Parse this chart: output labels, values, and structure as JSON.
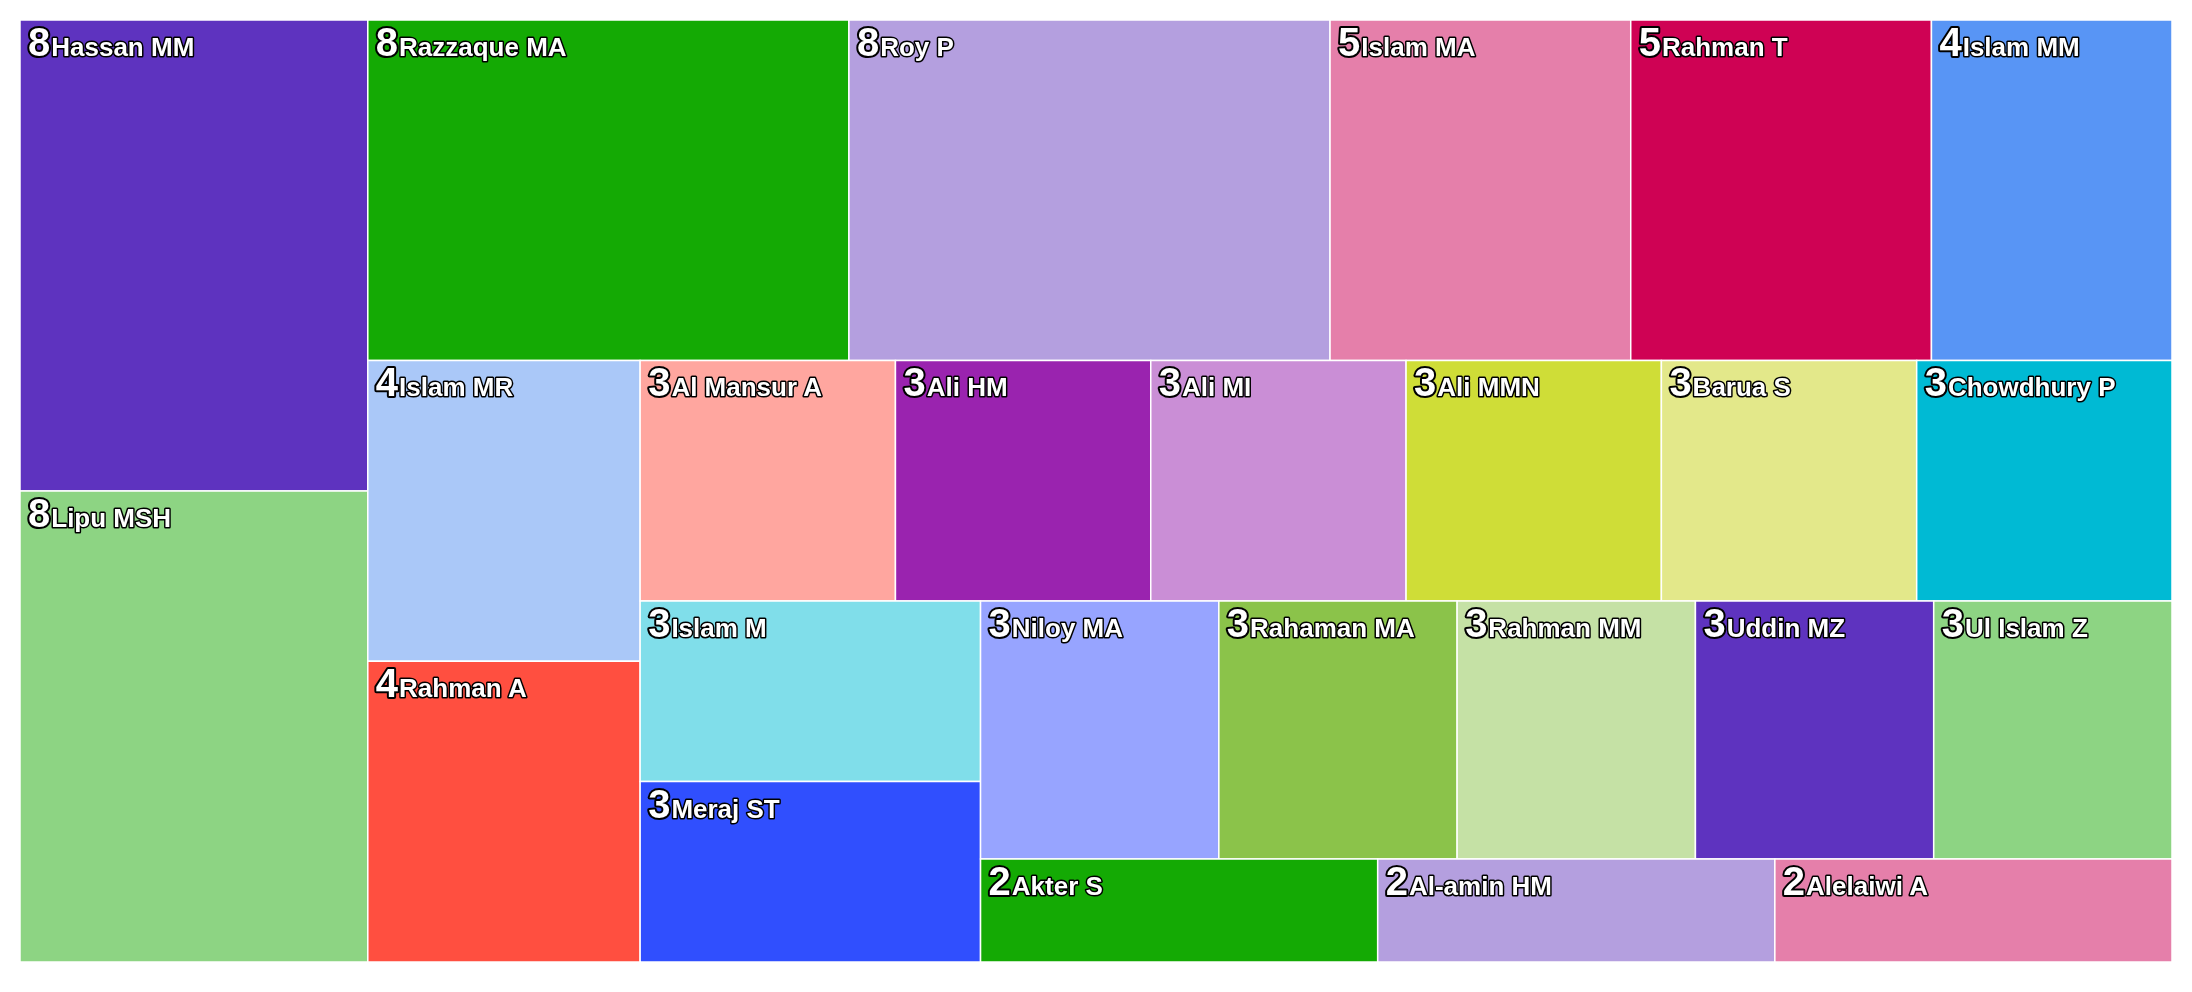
{
  "chart_data": {
    "type": "other",
    "data_labels": true,
    "categories": [
      "Hassan MM",
      "Lipu MSH",
      "Razzaque MA",
      "Roy P",
      "Islam MA",
      "Rahman T",
      "Islam MM",
      "Islam MR",
      "Rahman A",
      "Al Mansur A",
      "Ali HM",
      "Ali MI",
      "Ali MMN",
      "Barua S",
      "Chowdhury P",
      "Islam M",
      "Meraj ST",
      "Niloy MA",
      "Rahaman MA",
      "Rahman MM",
      "Uddin MZ",
      "Ul Islam Z",
      "Akter S",
      "Al-amin HM",
      "Alelaiwi A"
    ],
    "values": [
      8,
      8,
      8,
      8,
      5,
      5,
      4,
      4,
      4,
      3,
      3,
      3,
      3,
      3,
      3,
      3,
      3,
      3,
      3,
      3,
      3,
      3,
      2,
      2,
      2
    ],
    "colors": [
      "#5e33bf",
      "#8dd483",
      "#14aa04",
      "#b49fdf",
      "#e57faa",
      "#cf0254",
      "#5895f5",
      "#aac8f8",
      "#ff4f40",
      "#ffa69f",
      "#9a23af",
      "#ca8ed6",
      "#cfdd37",
      "#e3e88a",
      "#00bad4",
      "#80deea",
      "#304ffe",
      "#97a4ff",
      "#8bc34a",
      "#c5e1a5",
      "#5e33bf",
      "#8dd483",
      "#14aa04",
      "#b49fdf",
      "#e57faa"
    ]
  }
}
